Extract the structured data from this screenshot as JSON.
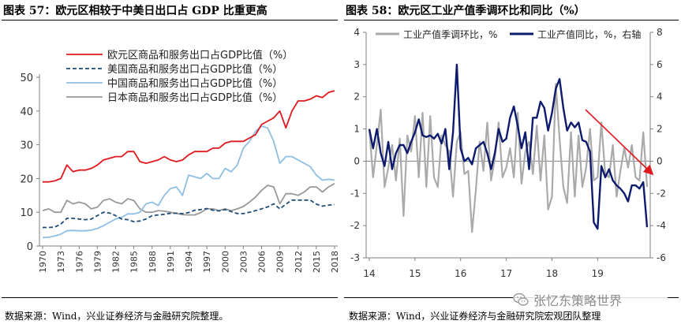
{
  "left": {
    "title": "图表 57：欧元区相较于中美日出口占 GDP 比重更高",
    "source": "数据来源：Wind，兴业证券经济与金融研究院整理。",
    "chart_data": {
      "type": "line",
      "title": "图表 57：欧元区相较于中美日出口占 GDP 比重更高",
      "ylim": [
        0,
        50
      ],
      "yticks": [
        "0",
        "10",
        "20",
        "30",
        "40",
        "50"
      ],
      "xticks": [
        "1970",
        "1973",
        "1976",
        "1979",
        "1982",
        "1985",
        "1988",
        "1991",
        "1994",
        "1997",
        "2000",
        "2003",
        "2006",
        "2009",
        "2012",
        "2015",
        "2018"
      ],
      "x": [
        1970,
        1971,
        1972,
        1973,
        1974,
        1975,
        1976,
        1977,
        1978,
        1979,
        1980,
        1981,
        1982,
        1983,
        1984,
        1985,
        1986,
        1987,
        1988,
        1989,
        1990,
        1991,
        1992,
        1993,
        1994,
        1995,
        1996,
        1997,
        1998,
        1999,
        2000,
        2001,
        2002,
        2003,
        2004,
        2005,
        2006,
        2007,
        2008,
        2009,
        2010,
        2011,
        2012,
        2013,
        2014,
        2015,
        2016,
        2017,
        2018
      ],
      "series": [
        {
          "name": "欧元区商品和服务出口占GDP比值（%）",
          "color": "#e0191e",
          "dash": "solid",
          "values": [
            19,
            19,
            19.3,
            20,
            24,
            22,
            22.5,
            22.5,
            23,
            24,
            25.5,
            26,
            26.5,
            26.5,
            28,
            28,
            25,
            24.5,
            25,
            25.5,
            26.5,
            25.5,
            25,
            25.5,
            27,
            28,
            28,
            28,
            29,
            29,
            30.5,
            31,
            31,
            31,
            32,
            33,
            36,
            37,
            38,
            40,
            35,
            40,
            43,
            43,
            43.5,
            44.5,
            44,
            45.5,
            46
          ]
        },
        {
          "name": "美国商品和服务出口占GDP比值（%）",
          "color": "#1f4e79",
          "dash": "dashed",
          "values": [
            5.5,
            5.5,
            5.6,
            6.5,
            8.2,
            8.2,
            8,
            7.8,
            8,
            9,
            10,
            9.8,
            9,
            8,
            7.8,
            7.2,
            7.4,
            8,
            9,
            9.2,
            9.4,
            9.7,
            9.7,
            9.6,
            9.9,
            10.6,
            10.8,
            11.1,
            10.6,
            10.4,
            10.8,
            10.2,
            9.6,
            9.6,
            10,
            10.5,
            11,
            11.6,
            12.5,
            11,
            12.4,
            13.6,
            13.6,
            13.6,
            13.6,
            12.4,
            11.8,
            12.1,
            12.3
          ]
        },
        {
          "name": "中国商品和服务出口占GDP比值（%）",
          "color": "#8fbfe3",
          "dash": "solid",
          "values": [
            2.5,
            2.6,
            3,
            3.5,
            4.5,
            4.6,
            4.5,
            4.5,
            4.7,
            5.2,
            6,
            7,
            8,
            8.5,
            9.5,
            9.5,
            10,
            12.5,
            13,
            12,
            15,
            17,
            17.5,
            15,
            21,
            20.5,
            20,
            21.5,
            20,
            20,
            23,
            22,
            24,
            29,
            31,
            34,
            35.5,
            35,
            31,
            24.5,
            26.5,
            26.5,
            25.5,
            24.5,
            23.5,
            21,
            19.5,
            19.8,
            19.5
          ]
        },
        {
          "name": "日本商品和服务出口占GDP比值（%）",
          "color": "#999999",
          "dash": "solid",
          "values": [
            10.5,
            11,
            10,
            10,
            13.5,
            12.5,
            13,
            12.5,
            11,
            11.5,
            13.5,
            14,
            13,
            12.5,
            14,
            13.5,
            11,
            10,
            10,
            10.5,
            10.3,
            10,
            9.7,
            9.3,
            9.2,
            9.2,
            9.9,
            11,
            11,
            10.5,
            11,
            10.5,
            11,
            11.7,
            13,
            14.5,
            16.5,
            18,
            17.5,
            12.5,
            15.5,
            15.5,
            15,
            16,
            17.5,
            17.5,
            16,
            17.5,
            18.5
          ]
        }
      ]
    }
  },
  "right": {
    "title": "图表 58：欧元区工业产值季调环比和同比（%）",
    "source": "数据来源：Wind，兴业证券经济与金融研究院宏观团队整理",
    "chart_data": {
      "type": "line",
      "title": "图表 58：欧元区工业产值季调环比和同比（%）",
      "ylim_left": [
        -3,
        4
      ],
      "ylim_right": [
        -6,
        8
      ],
      "yticks_left": [
        "-3",
        "-2",
        "-1",
        "0",
        "1",
        "2",
        "3",
        "4"
      ],
      "yticks_right": [
        "-6",
        "-4",
        "-2",
        "0",
        "2",
        "4",
        "6",
        "8"
      ],
      "xticks": [
        "14",
        "15",
        "16",
        "17",
        "18",
        "19"
      ],
      "x_start": 2014.0,
      "x_step": 0.08333,
      "series": [
        {
          "name": "工业产值季调环比，%",
          "axis": "left",
          "color": "#aaaaaa",
          "values": [
            1,
            -0.5,
            0.5,
            1.6,
            -0.8,
            -0.2,
            0.5,
            -0.6,
            0.7,
            -1.7,
            0.8,
            0.3,
            1.4,
            -0.5,
            1.5,
            -0.8,
            1.4,
            -0.5,
            -0.8,
            0.8,
            0.5,
            0.3,
            -1.1,
            0.6,
            0.9,
            -0.4,
            -0.3,
            -2.2,
            -0.9,
            0.6,
            -0.3,
            1.2,
            -0.6,
            0.1,
            1.2,
            -0.5,
            -0.2,
            0.4,
            -0.5,
            1.5,
            -0.7,
            0.3,
            0.6,
            -0.4,
            1.1,
            -0.6,
            0.8,
            -1.5,
            -1.1,
            2.4,
            0.7,
            -0.8,
            -1.3,
            0.9,
            -1.1,
            0.8,
            -0.8,
            -0.2,
            1.0,
            -0.6,
            -0.5,
            1.2,
            -0.4,
            -0.5,
            0.5,
            -1.1,
            -0.3,
            0.4,
            -0.2,
            0.5,
            -0.5,
            -0.6,
            0.9,
            -0.8
          ]
        },
        {
          "name": "工业产值同比，%，右轴",
          "axis": "right",
          "color": "#0d1b6e",
          "values": [
            2,
            0.8,
            2,
            0.5,
            -0.3,
            1.2,
            -0.5,
            0.5,
            1,
            1,
            0.5,
            1.2,
            1.8,
            2.6,
            1.6,
            1.5,
            1.6,
            1.4,
            1.7,
            1.1,
            2,
            -0.5,
            1.8,
            6,
            0.8,
            0,
            0.2,
            -0.2,
            0.8,
            1,
            1.2,
            0.5,
            -0.5,
            0.5,
            2,
            1.2,
            1.4,
            2.7,
            3.4,
            2.2,
            0.8,
            1.8,
            -0.5,
            2.7,
            2.7,
            3.7,
            3.3,
            1.9,
            3,
            4.5,
            5.1,
            3.3,
            1.9,
            2.4,
            2.1,
            2.4,
            1.3,
            1.2,
            0.6,
            -3.8,
            -4.2,
            -0.3,
            -1,
            -0.5,
            -1.2,
            -1.5,
            -1.7,
            -2,
            -2.5,
            -1.5,
            -1.5,
            -1.7,
            -1.3,
            -4.1
          ]
        }
      ],
      "annotation": "arrow"
    }
  },
  "watermark": {
    "text": "张忆东策略世界"
  },
  "colors": {
    "red": "#e0191e",
    "arrow": "#e0191e"
  }
}
